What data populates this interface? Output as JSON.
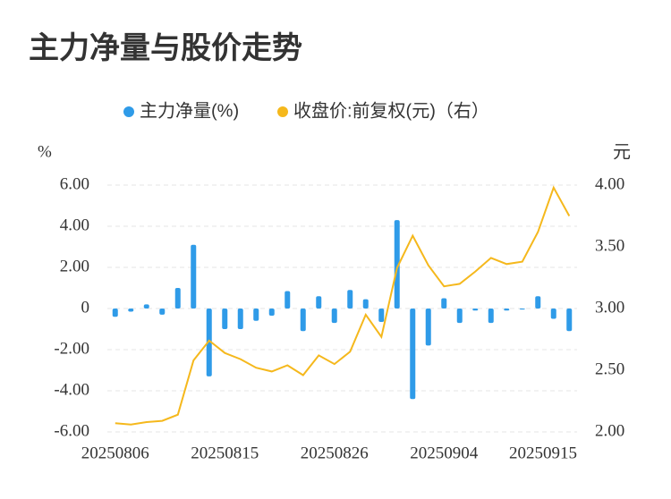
{
  "chart_data": {
    "type": "bar_line",
    "title": "主力净量与股价走势",
    "y_label": "%",
    "y2_label": "元",
    "categories": [
      "20250806",
      null,
      null,
      null,
      null,
      null,
      null,
      "20250815",
      null,
      null,
      null,
      null,
      null,
      null,
      "20250826",
      null,
      null,
      null,
      null,
      null,
      null,
      "20250904",
      null,
      null,
      null,
      null,
      null,
      null,
      "20250915",
      null
    ],
    "series": [
      {
        "name": "主力净量(%)",
        "type": "bar",
        "color": "#2f9be8",
        "values": [
          -0.4,
          -0.15,
          0.2,
          -0.3,
          1.0,
          3.1,
          -3.3,
          -1.0,
          -1.0,
          -0.6,
          -0.35,
          0.85,
          -1.1,
          0.6,
          -0.7,
          0.9,
          0.45,
          -0.65,
          4.3,
          -4.4,
          -1.8,
          0.5,
          -0.7,
          -0.1,
          -0.7,
          -0.1,
          -0.05,
          0.6,
          -0.5,
          -1.1
        ]
      },
      {
        "name": "收盘价:前复权(元)（右）",
        "type": "line",
        "axis": "y2",
        "color": "#f5b81c",
        "values": [
          2.07,
          2.06,
          2.08,
          2.09,
          2.14,
          2.58,
          2.74,
          2.64,
          2.59,
          2.52,
          2.49,
          2.54,
          2.46,
          2.62,
          2.55,
          2.65,
          2.95,
          2.77,
          3.33,
          3.59,
          3.35,
          3.18,
          3.2,
          3.3,
          3.41,
          3.36,
          3.38,
          3.62,
          3.98,
          3.75
        ]
      }
    ],
    "ylim": [
      -6,
      6
    ],
    "yticks": [
      {
        "value": -6,
        "label": "-6.00"
      },
      {
        "value": -4,
        "label": "-4.00"
      },
      {
        "value": -2,
        "label": "-2.00"
      },
      0,
      {
        "value": 2,
        "label": "2.00"
      },
      {
        "value": 4,
        "label": "4.00"
      },
      {
        "value": 6,
        "label": "6.00"
      }
    ],
    "y2lim": [
      2,
      4
    ],
    "y2ticks": [
      {
        "value": 2,
        "label": "2.00"
      },
      {
        "value": 2.5,
        "label": "2.50"
      },
      {
        "value": 3,
        "label": "3.00"
      },
      {
        "value": 3.5,
        "label": "3.50"
      },
      {
        "value": 4,
        "label": "4.00"
      }
    ],
    "grid": true
  }
}
